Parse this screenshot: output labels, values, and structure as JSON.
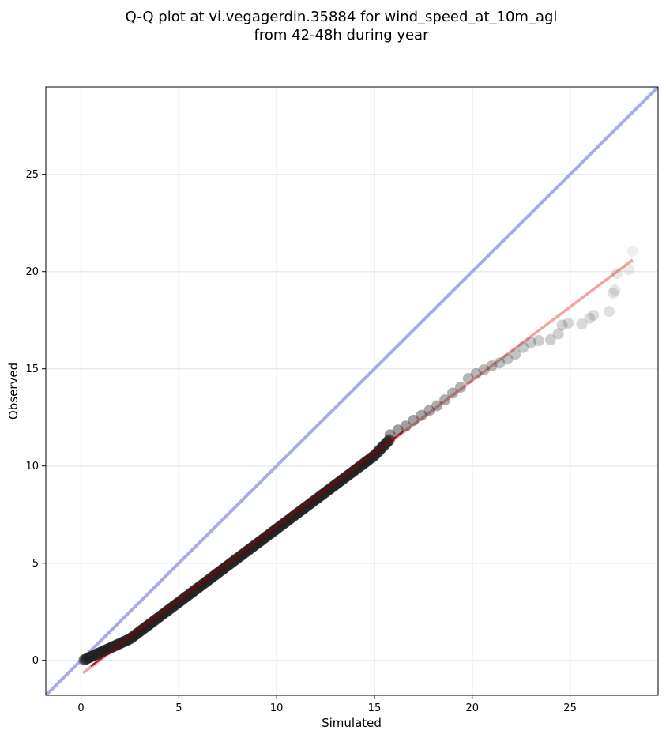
{
  "chart_data": {
    "type": "scatter",
    "title_line1": "Q-Q plot at vi.vegagerdin.35884 for wind_speed_at_10m_agl",
    "title_line2": "from 42-48h during year",
    "xlabel": "Simulated",
    "ylabel": "Observed",
    "xlim": [
      -1.8,
      29.5
    ],
    "ylim": [
      -1.8,
      29.5
    ],
    "xticks": [
      0,
      5,
      10,
      15,
      20,
      25
    ],
    "yticks": [
      0,
      5,
      10,
      15,
      20,
      25
    ],
    "xtick_labels": [
      "0",
      "5",
      "10",
      "15",
      "20",
      "25"
    ],
    "ytick_labels": [
      "0",
      "5",
      "10",
      "15",
      "20",
      "25"
    ],
    "grid": true,
    "reference_line": {
      "x": [
        -1.8,
        29.5
      ],
      "y": [
        -1.8,
        29.5
      ],
      "color": "#a6aaf2"
    },
    "fit_line": {
      "x": [
        0.1,
        28.2
      ],
      "y": [
        -0.65,
        20.6
      ],
      "color": "#f4a3a3"
    },
    "inner_fit_line": {
      "x": [
        0.5,
        16.5
      ],
      "y": [
        -0.3,
        11.8
      ],
      "color": "#8b0000"
    },
    "point_color": "#222222",
    "tail_points": [
      [
        15.8,
        11.6
      ],
      [
        16.2,
        11.85
      ],
      [
        16.6,
        12.05
      ],
      [
        17.0,
        12.35
      ],
      [
        17.4,
        12.6
      ],
      [
        17.8,
        12.85
      ],
      [
        18.2,
        13.1
      ],
      [
        18.6,
        13.4
      ],
      [
        19.0,
        13.75
      ],
      [
        19.4,
        14.05
      ],
      [
        19.8,
        14.5
      ],
      [
        20.2,
        14.75
      ],
      [
        20.6,
        14.95
      ],
      [
        21.0,
        15.15
      ],
      [
        21.4,
        15.3
      ],
      [
        21.8,
        15.5
      ],
      [
        22.2,
        15.75
      ],
      [
        22.6,
        16.1
      ],
      [
        23.0,
        16.35
      ],
      [
        23.4,
        16.45
      ],
      [
        24.0,
        16.5
      ],
      [
        24.4,
        16.8
      ],
      [
        24.6,
        17.25
      ],
      [
        24.9,
        17.35
      ],
      [
        25.6,
        17.3
      ],
      [
        26.0,
        17.6
      ],
      [
        26.2,
        17.75
      ],
      [
        27.0,
        17.95
      ],
      [
        27.2,
        18.9
      ],
      [
        27.3,
        19.05
      ],
      [
        27.4,
        19.9
      ],
      [
        28.0,
        20.1
      ],
      [
        28.2,
        21.05
      ]
    ]
  }
}
